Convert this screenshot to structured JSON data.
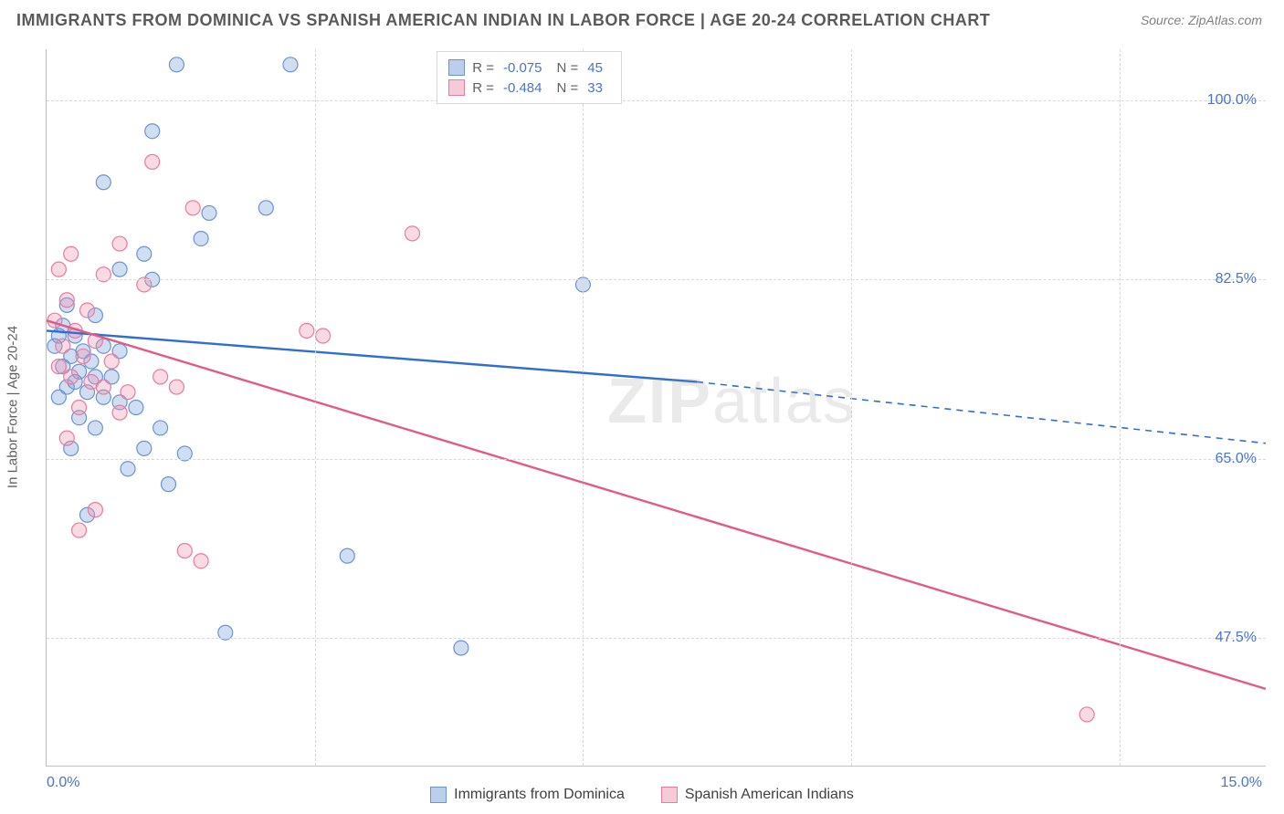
{
  "title": "IMMIGRANTS FROM DOMINICA VS SPANISH AMERICAN INDIAN IN LABOR FORCE | AGE 20-24 CORRELATION CHART",
  "source": "Source: ZipAtlas.com",
  "ylabel": "In Labor Force | Age 20-24",
  "watermark_a": "ZIP",
  "watermark_b": "atlas",
  "chart": {
    "type": "scatter-with-regression",
    "xlim": [
      0,
      15
    ],
    "ylim": [
      35,
      105
    ],
    "xticks": [
      0,
      15
    ],
    "xtick_labels": [
      "0.0%",
      "15.0%"
    ],
    "yticks": [
      47.5,
      65.0,
      82.5,
      100.0
    ],
    "ytick_labels": [
      "47.5%",
      "65.0%",
      "82.5%",
      "100.0%"
    ],
    "grid_color": "#d8d8d8",
    "background": "#ffffff",
    "axis_color": "#c0c0c0",
    "series": [
      {
        "name": "Immigrants from Dominica",
        "color_fill": "rgba(120,160,220,0.35)",
        "color_stroke": "#6a94ce",
        "line_color": "#2e6fd0",
        "r": -0.075,
        "n": 45,
        "regression": {
          "x1": 0,
          "y1": 77.5,
          "x2": 8.0,
          "y2": 72.5,
          "x3_dash": 15,
          "y3_dash": 66.5
        },
        "points": [
          [
            1.6,
            103.5
          ],
          [
            3.0,
            103.5
          ],
          [
            1.3,
            97.0
          ],
          [
            0.7,
            92.0
          ],
          [
            2.7,
            89.5
          ],
          [
            2.0,
            89.0
          ],
          [
            1.9,
            86.5
          ],
          [
            1.2,
            85.0
          ],
          [
            0.9,
            83.5
          ],
          [
            1.3,
            82.5
          ],
          [
            6.6,
            82.0
          ],
          [
            0.25,
            80.0
          ],
          [
            0.6,
            79.0
          ],
          [
            0.2,
            78.0
          ],
          [
            0.15,
            77.0
          ],
          [
            0.35,
            77.0
          ],
          [
            0.1,
            76.0
          ],
          [
            0.45,
            75.5
          ],
          [
            0.3,
            75.0
          ],
          [
            0.55,
            74.5
          ],
          [
            0.2,
            74.0
          ],
          [
            0.4,
            73.5
          ],
          [
            0.6,
            73.0
          ],
          [
            0.8,
            73.0
          ],
          [
            0.25,
            72.0
          ],
          [
            0.5,
            71.5
          ],
          [
            0.7,
            71.0
          ],
          [
            0.9,
            70.5
          ],
          [
            1.1,
            70.0
          ],
          [
            0.4,
            69.0
          ],
          [
            0.6,
            68.0
          ],
          [
            1.4,
            68.0
          ],
          [
            0.3,
            66.0
          ],
          [
            1.2,
            66.0
          ],
          [
            1.7,
            65.5
          ],
          [
            1.0,
            64.0
          ],
          [
            1.5,
            62.5
          ],
          [
            0.5,
            59.5
          ],
          [
            3.7,
            55.5
          ],
          [
            2.2,
            48.0
          ],
          [
            5.1,
            46.5
          ],
          [
            0.9,
            75.5
          ],
          [
            0.7,
            76.0
          ],
          [
            0.35,
            72.5
          ],
          [
            0.15,
            71.0
          ]
        ]
      },
      {
        "name": "Spanish American Indians",
        "color_fill": "rgba(240,150,175,0.35)",
        "color_stroke": "#e77ba0",
        "line_color": "#e25a86",
        "r": -0.484,
        "n": 33,
        "regression": {
          "x1": 0,
          "y1": 78.5,
          "x2": 15,
          "y2": 42.5
        },
        "points": [
          [
            1.3,
            94.0
          ],
          [
            1.8,
            89.5
          ],
          [
            4.5,
            87.0
          ],
          [
            0.9,
            86.0
          ],
          [
            0.3,
            85.0
          ],
          [
            0.15,
            83.5
          ],
          [
            0.7,
            83.0
          ],
          [
            1.2,
            82.0
          ],
          [
            0.25,
            80.5
          ],
          [
            0.5,
            79.5
          ],
          [
            0.1,
            78.5
          ],
          [
            0.35,
            77.5
          ],
          [
            0.6,
            76.5
          ],
          [
            0.2,
            76.0
          ],
          [
            0.45,
            75.0
          ],
          [
            0.8,
            74.5
          ],
          [
            3.2,
            77.5
          ],
          [
            3.4,
            77.0
          ],
          [
            0.3,
            73.0
          ],
          [
            0.55,
            72.5
          ],
          [
            0.7,
            72.0
          ],
          [
            1.0,
            71.5
          ],
          [
            1.4,
            73.0
          ],
          [
            0.4,
            70.0
          ],
          [
            0.9,
            69.5
          ],
          [
            1.6,
            72.0
          ],
          [
            0.25,
            67.0
          ],
          [
            0.6,
            60.0
          ],
          [
            0.4,
            58.0
          ],
          [
            1.7,
            56.0
          ],
          [
            1.9,
            55.0
          ],
          [
            12.8,
            40.0
          ],
          [
            0.15,
            74.0
          ]
        ]
      }
    ]
  },
  "legend_top": {
    "rows": [
      {
        "swatch_fill": "rgba(120,160,220,0.5)",
        "swatch_stroke": "#6a94ce",
        "r": "-0.075",
        "n": "45"
      },
      {
        "swatch_fill": "rgba(240,150,175,0.5)",
        "swatch_stroke": "#e77ba0",
        "r": "-0.484",
        "n": "33"
      }
    ]
  },
  "legend_bottom": [
    {
      "swatch_fill": "rgba(120,160,220,0.5)",
      "swatch_stroke": "#6a94ce",
      "label": "Immigrants from Dominica"
    },
    {
      "swatch_fill": "rgba(240,150,175,0.5)",
      "swatch_stroke": "#e77ba0",
      "label": "Spanish American Indians"
    }
  ]
}
